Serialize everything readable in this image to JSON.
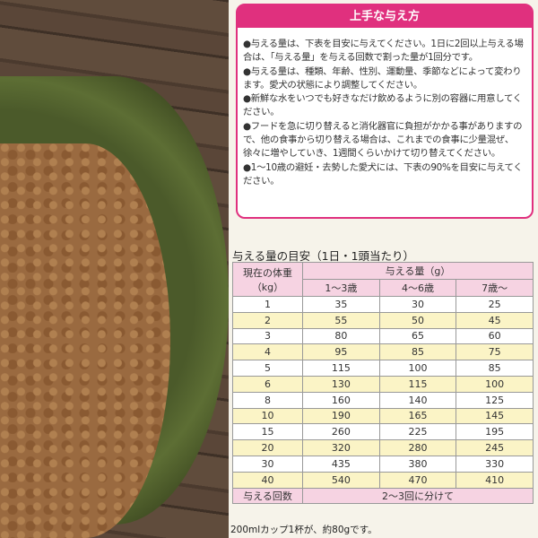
{
  "colors": {
    "accent": "#e0307e",
    "header_bg": "#f6d3e2",
    "row_alt": "#fbf4c6"
  },
  "tips": {
    "title": "上手な与え方",
    "items": [
      "●与える量は、下表を目安に与えてください。1日に2回以上与える場合は、「与える量」を与える回数で割った量が1回分です。",
      "●与える量は、種類、年齢、性別、運動量、季節などによって変わります。愛犬の状態により調整してください。",
      "●新鮮な水をいつでも好きなだけ飲めるように別の容器に用意してください。",
      "●フードを急に切り替えると消化器官に負担がかかる事がありますので、他の食事から切り替える場合は、これまでの食事に少量混ぜ、徐々に増やしていき、1週間くらいかけて切り替えてください。",
      "●1〜10歳の避妊・去勢した愛犬には、下表の90%を目安に与えてください。"
    ]
  },
  "table": {
    "title": "与える量の目安（1日・1頭当たり）",
    "weight_header": "現在の体重",
    "weight_unit": "（kg）",
    "amount_header": "与える量（g）",
    "age_headers": [
      "1〜3歳",
      "4〜6歳",
      "7歳〜"
    ],
    "rows": [
      [
        "1",
        "35",
        "30",
        "25"
      ],
      [
        "2",
        "55",
        "50",
        "45"
      ],
      [
        "3",
        "80",
        "65",
        "60"
      ],
      [
        "4",
        "95",
        "85",
        "75"
      ],
      [
        "5",
        "115",
        "100",
        "85"
      ],
      [
        "6",
        "130",
        "115",
        "100"
      ],
      [
        "8",
        "160",
        "140",
        "125"
      ],
      [
        "10",
        "190",
        "165",
        "145"
      ],
      [
        "15",
        "260",
        "225",
        "195"
      ],
      [
        "20",
        "320",
        "280",
        "245"
      ],
      [
        "30",
        "435",
        "380",
        "330"
      ],
      [
        "40",
        "540",
        "470",
        "410"
      ]
    ],
    "times_label": "与える回数",
    "times_value": "2〜3回に分けて"
  },
  "footnote": "200mlカップ1杯が、約80gです。"
}
